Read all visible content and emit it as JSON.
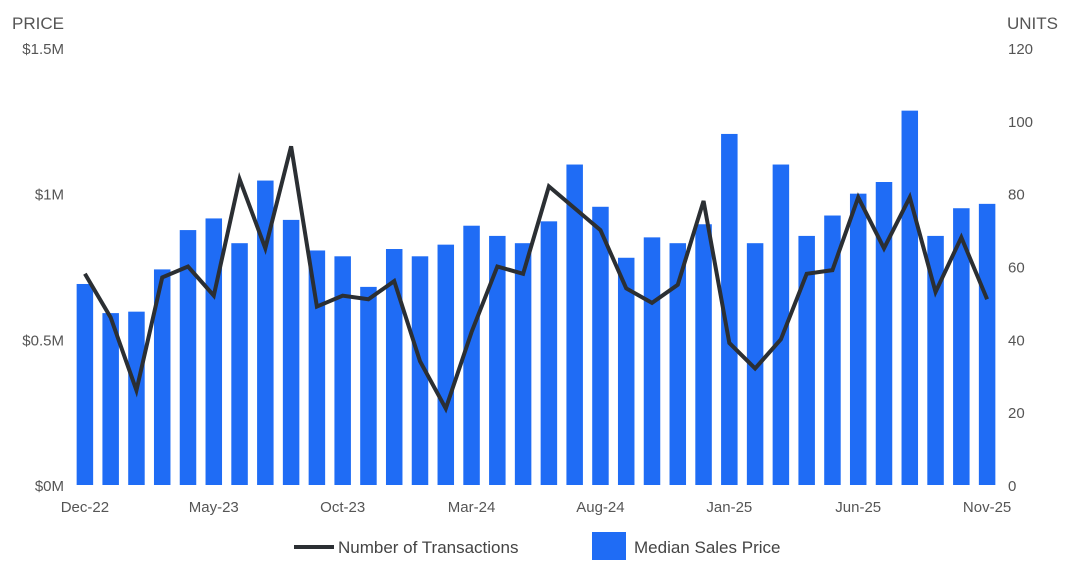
{
  "chart_data": {
    "type": "bar",
    "left_axis": {
      "title": "PRICE",
      "ticks": [
        "$0M",
        "$0.5M",
        "$1M",
        "$1.5M"
      ],
      "ylim": [
        0,
        1500000
      ]
    },
    "right_axis": {
      "title": "UNITS",
      "ticks": [
        "0",
        "20",
        "40",
        "60",
        "80",
        "100",
        "120"
      ],
      "ylim": [
        0,
        120
      ]
    },
    "x_tick_labels": [
      "Dec-22",
      "May-23",
      "Oct-23",
      "Mar-24",
      "Aug-24",
      "Jan-25",
      "Jun-25",
      "Nov-25"
    ],
    "x_tick_indices": [
      0,
      5,
      10,
      15,
      20,
      25,
      30,
      35
    ],
    "categories": [
      "Dec-22",
      "Jan-23",
      "Feb-23",
      "Mar-23",
      "Apr-23",
      "May-23",
      "Jun-23",
      "Jul-23",
      "Aug-23",
      "Sep-23",
      "Oct-23",
      "Nov-23",
      "Dec-23",
      "Jan-24",
      "Feb-24",
      "Mar-24",
      "Apr-24",
      "May-24",
      "Jun-24",
      "Jul-24",
      "Aug-24",
      "Sep-24",
      "Oct-24",
      "Nov-24",
      "Dec-24",
      "Jan-25",
      "Feb-25",
      "Mar-25",
      "Apr-25",
      "May-25",
      "Jun-25",
      "Jul-25",
      "Aug-25",
      "Sep-25",
      "Oct-25",
      "Nov-25"
    ],
    "series": [
      {
        "name": "Median Sales Price",
        "type": "bar",
        "axis": "left",
        "color": "#1f6cf5",
        "values": [
          690000,
          590000,
          595000,
          740000,
          875000,
          915000,
          830000,
          1045000,
          910000,
          805000,
          785000,
          680000,
          810000,
          785000,
          825000,
          890000,
          855000,
          830000,
          905000,
          1100000,
          955000,
          780000,
          850000,
          830000,
          895000,
          1205000,
          830000,
          1100000,
          855000,
          925000,
          1000000,
          1040000,
          1285000,
          855000,
          950000,
          965000
        ]
      },
      {
        "name": "Number of Transactions",
        "type": "line",
        "axis": "right",
        "color": "#2b2f33",
        "values": [
          58,
          46,
          26,
          57,
          60,
          52,
          84,
          65,
          93,
          49,
          52,
          51,
          56,
          34,
          21,
          42,
          60,
          58,
          82,
          76,
          70,
          54,
          50,
          55,
          78,
          39,
          32,
          40,
          58,
          59,
          79,
          65,
          79,
          53,
          68,
          51
        ]
      }
    ]
  },
  "legend": {
    "line_label": "Number of Transactions",
    "bar_label": "Median Sales Price"
  }
}
